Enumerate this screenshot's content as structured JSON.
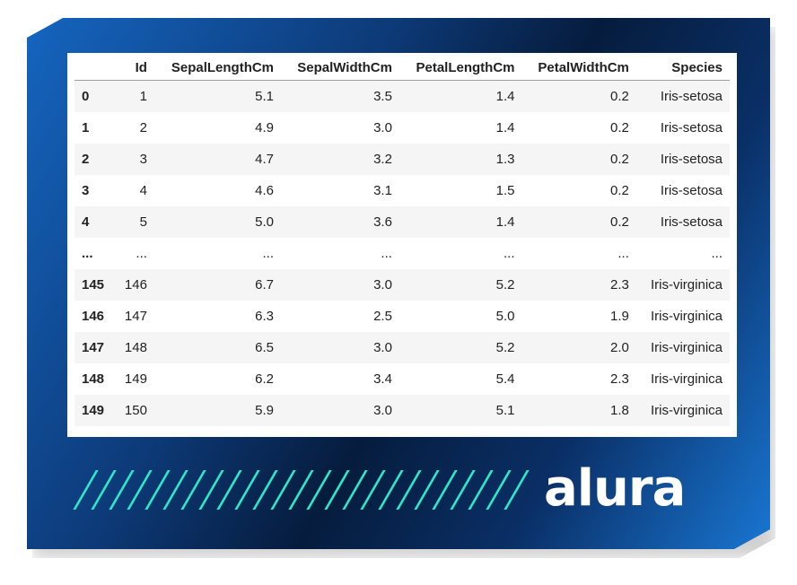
{
  "table": {
    "columns": [
      "",
      "Id",
      "SepalLengthCm",
      "SepalWidthCm",
      "PetalLengthCm",
      "PetalWidthCm",
      "Species"
    ],
    "rows": [
      [
        "0",
        "1",
        "5.1",
        "3.5",
        "1.4",
        "0.2",
        "Iris-setosa"
      ],
      [
        "1",
        "2",
        "4.9",
        "3.0",
        "1.4",
        "0.2",
        "Iris-setosa"
      ],
      [
        "2",
        "3",
        "4.7",
        "3.2",
        "1.3",
        "0.2",
        "Iris-setosa"
      ],
      [
        "3",
        "4",
        "4.6",
        "3.1",
        "1.5",
        "0.2",
        "Iris-setosa"
      ],
      [
        "4",
        "5",
        "5.0",
        "3.6",
        "1.4",
        "0.2",
        "Iris-setosa"
      ],
      [
        "...",
        "...",
        "...",
        "...",
        "...",
        "...",
        "..."
      ],
      [
        "145",
        "146",
        "6.7",
        "3.0",
        "5.2",
        "2.3",
        "Iris-virginica"
      ],
      [
        "146",
        "147",
        "6.3",
        "2.5",
        "5.0",
        "1.9",
        "Iris-virginica"
      ],
      [
        "147",
        "148",
        "6.5",
        "3.0",
        "5.2",
        "2.0",
        "Iris-virginica"
      ],
      [
        "148",
        "149",
        "6.2",
        "3.4",
        "5.4",
        "2.3",
        "Iris-virginica"
      ],
      [
        "149",
        "150",
        "5.9",
        "3.0",
        "5.1",
        "1.8",
        "Iris-virginica"
      ]
    ]
  },
  "brand": {
    "logo_text": "alura",
    "accent_color": "#2ee6c9"
  }
}
